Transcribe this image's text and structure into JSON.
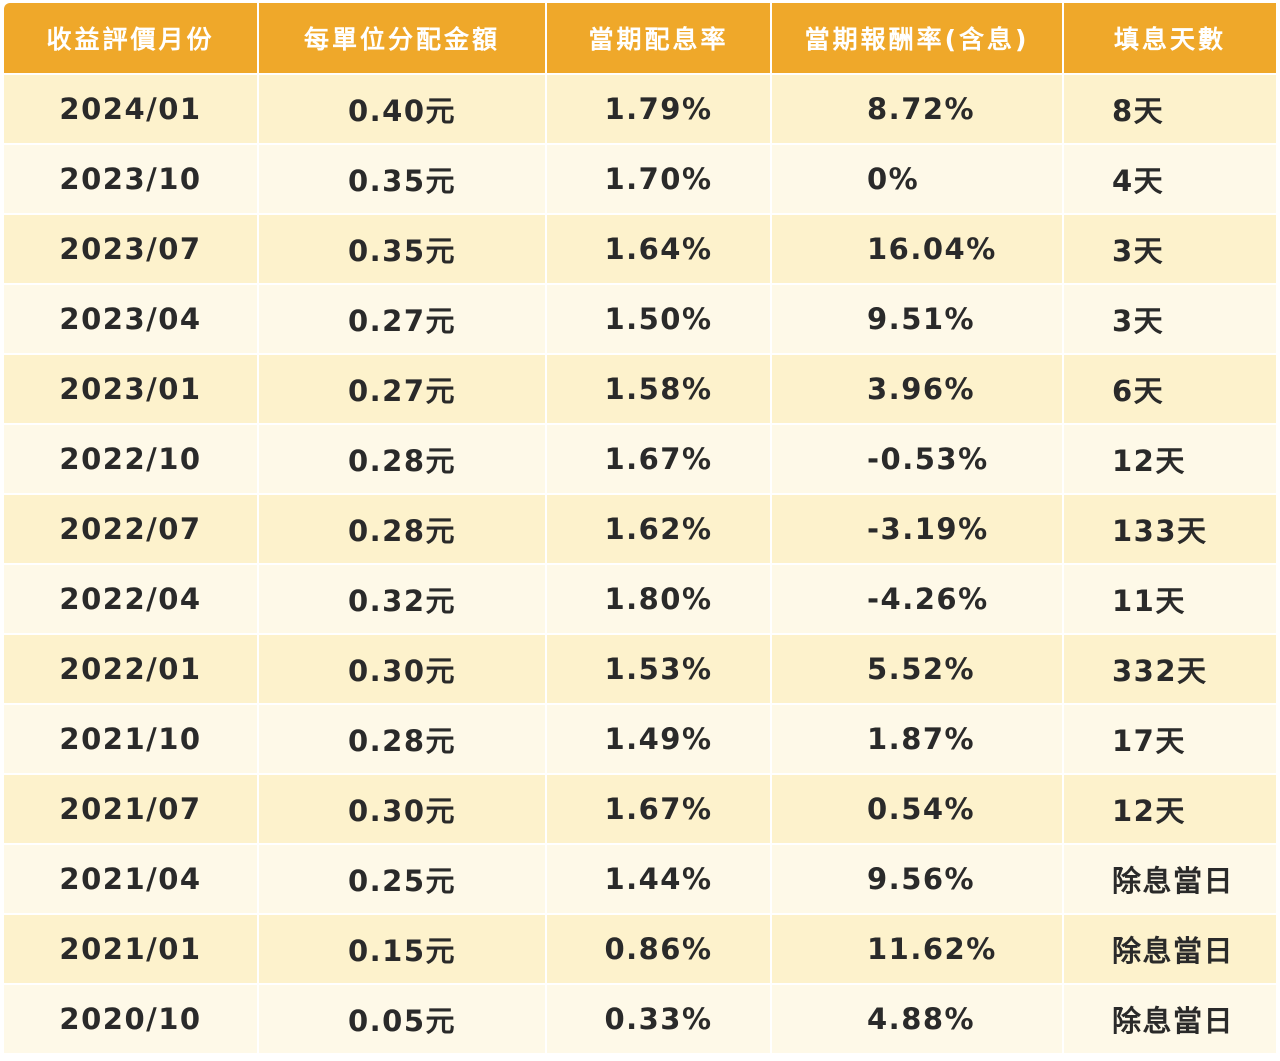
{
  "table": {
    "header": [
      "收益評價月份",
      "每單位分配金額",
      "當期配息率",
      "當期報酬率(含息)",
      "填息天數"
    ],
    "rows": [
      [
        "2024/01",
        "0.40元",
        "1.79%",
        "8.72%",
        "8天"
      ],
      [
        "2023/10",
        "0.35元",
        "1.70%",
        "0%",
        "4天"
      ],
      [
        "2023/07",
        "0.35元",
        "1.64%",
        "16.04%",
        "3天"
      ],
      [
        "2023/04",
        "0.27元",
        "1.50%",
        "9.51%",
        "3天"
      ],
      [
        "2023/01",
        "0.27元",
        "1.58%",
        "3.96%",
        "6天"
      ],
      [
        "2022/10",
        "0.28元",
        "1.67%",
        "-0.53%",
        "12天"
      ],
      [
        "2022/07",
        "0.28元",
        "1.62%",
        "-3.19%",
        "133天"
      ],
      [
        "2022/04",
        "0.32元",
        "1.80%",
        "-4.26%",
        "11天"
      ],
      [
        "2022/01",
        "0.30元",
        "1.53%",
        "5.52%",
        "332天"
      ],
      [
        "2021/10",
        "0.28元",
        "1.49%",
        "1.87%",
        "17天"
      ],
      [
        "2021/07",
        "0.30元",
        "1.67%",
        "0.54%",
        "12天"
      ],
      [
        "2021/04",
        "0.25元",
        "1.44%",
        "9.56%",
        "除息當日"
      ],
      [
        "2021/01",
        "0.15元",
        "0.86%",
        "11.62%",
        "除息當日"
      ],
      [
        "2020/10",
        "0.05元",
        "0.33%",
        "4.88%",
        "除息當日"
      ]
    ]
  }
}
